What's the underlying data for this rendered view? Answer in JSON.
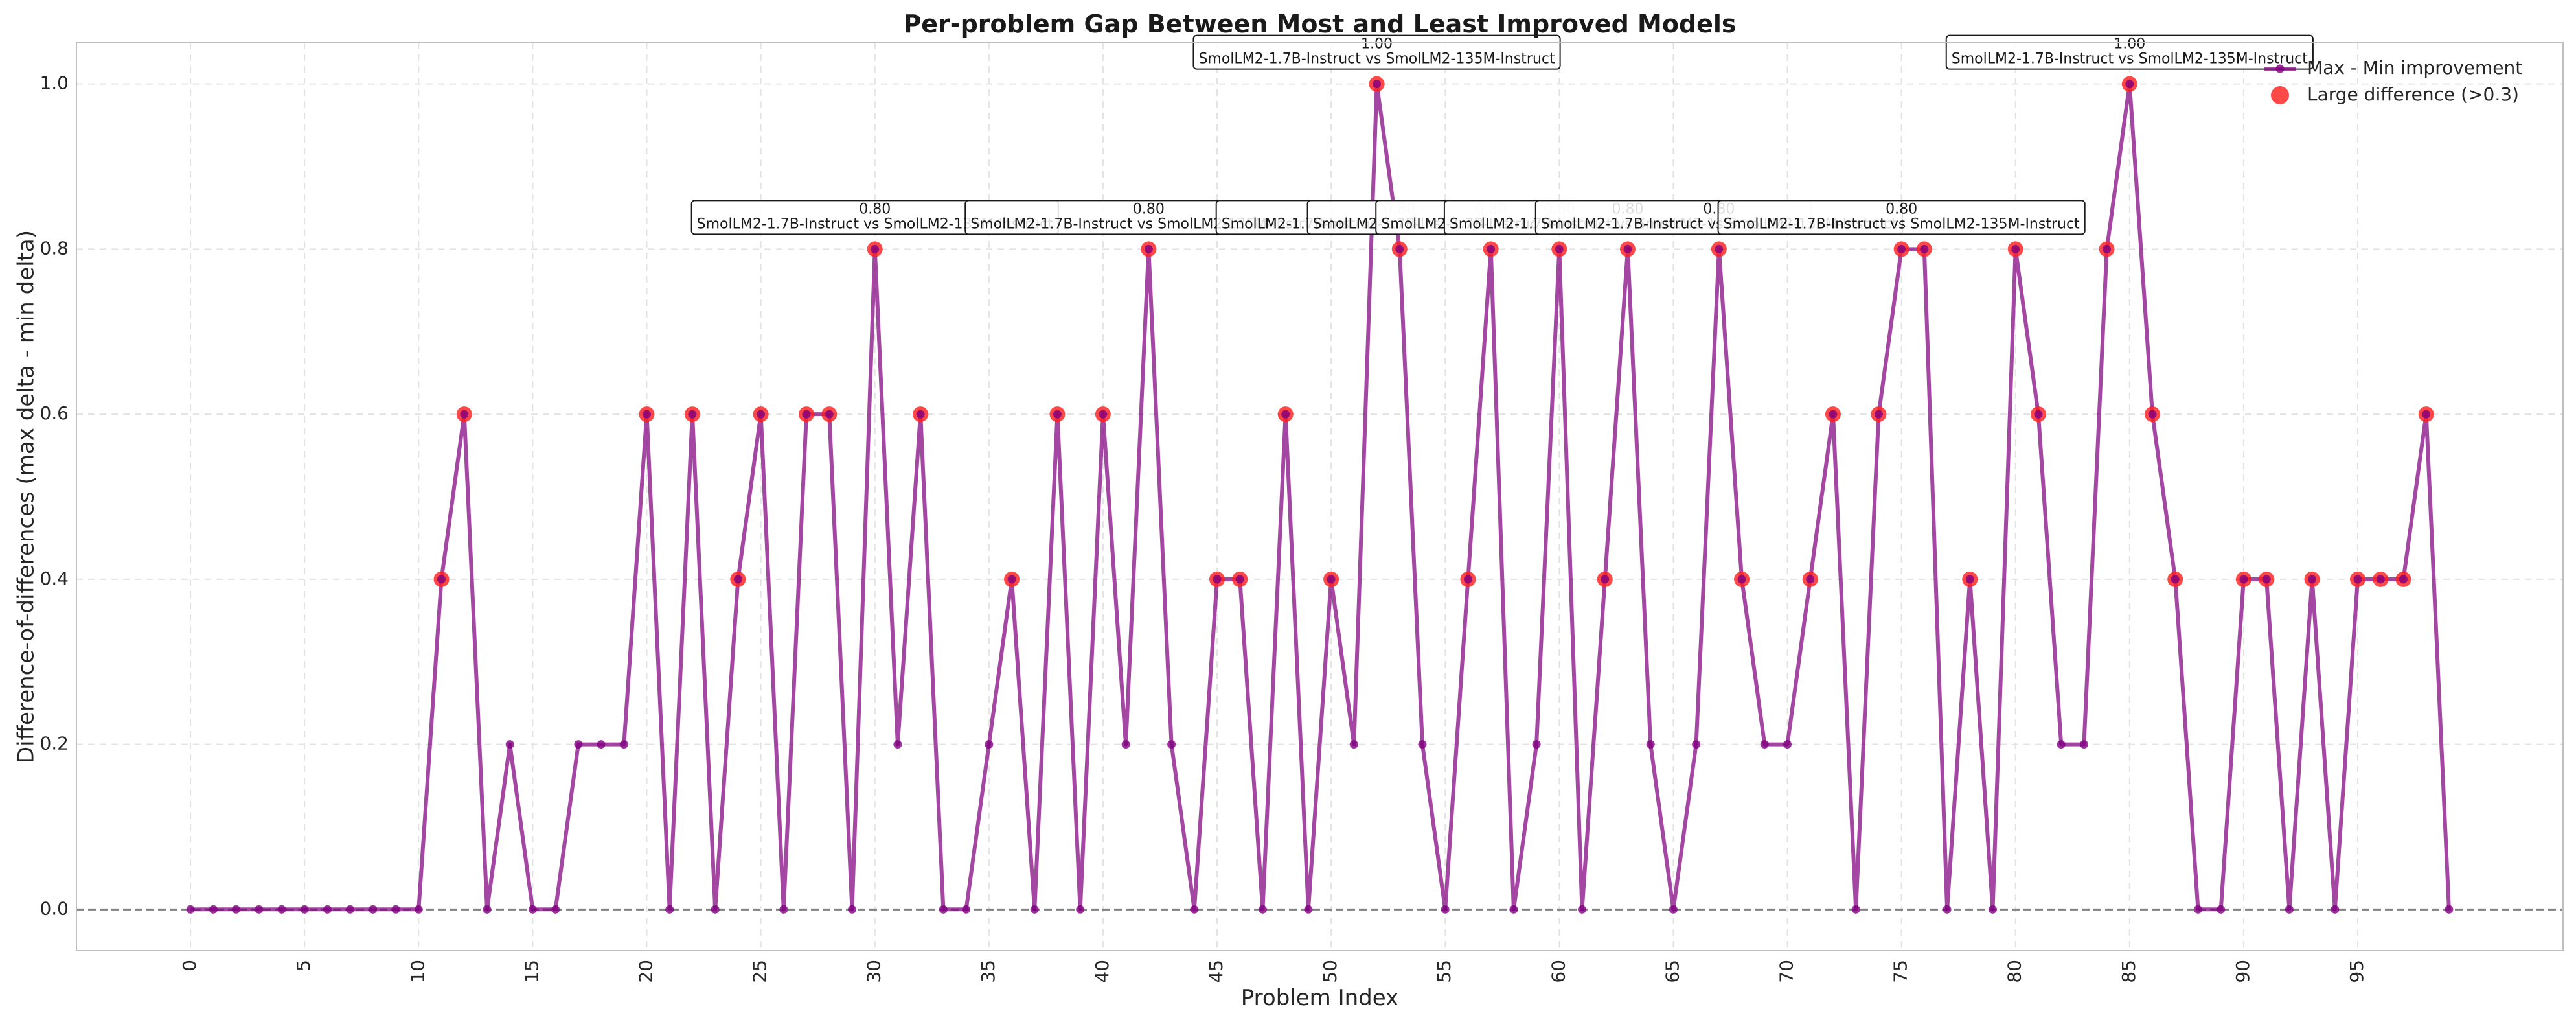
{
  "chart_data": {
    "type": "line",
    "title": "Per-problem Gap Between Most and Least Improved Models",
    "xlabel": "Problem Index",
    "ylabel": "Difference-of-differences (max delta - min delta)",
    "xlim": [
      -5,
      104
    ],
    "ylim": [
      -0.05,
      1.05
    ],
    "x_ticks": [
      0,
      5,
      10,
      15,
      20,
      25,
      30,
      35,
      40,
      45,
      50,
      55,
      60,
      65,
      70,
      75,
      80,
      85,
      90,
      95
    ],
    "y_ticks": [
      0.0,
      0.2,
      0.4,
      0.6,
      0.8,
      1.0
    ],
    "y_tick_labels": [
      "0.0",
      "0.2",
      "0.4",
      "0.6",
      "0.8",
      "1.0"
    ],
    "grid": true,
    "legend_position": "top-right",
    "series": [
      {
        "name": "Max - Min improvement",
        "color": "#800080",
        "x": [
          0,
          1,
          2,
          3,
          4,
          5,
          6,
          7,
          8,
          9,
          10,
          11,
          12,
          13,
          14,
          15,
          16,
          17,
          18,
          19,
          20,
          21,
          22,
          23,
          24,
          25,
          26,
          27,
          28,
          29,
          30,
          31,
          32,
          33,
          34,
          35,
          36,
          37,
          38,
          39,
          40,
          41,
          42,
          43,
          44,
          45,
          46,
          47,
          48,
          49,
          50,
          51,
          52,
          53,
          54,
          55,
          56,
          57,
          58,
          59,
          60,
          61,
          62,
          63,
          64,
          65,
          66,
          67,
          68,
          69,
          70,
          71,
          72,
          73,
          74,
          75,
          76,
          77,
          78,
          79,
          80,
          81,
          82,
          83,
          84,
          85,
          86,
          87,
          88,
          89,
          90,
          91,
          92,
          93,
          94,
          95,
          96,
          97,
          98,
          99
        ],
        "values": [
          0,
          0,
          0,
          0,
          0,
          0,
          0,
          0,
          0,
          0,
          0,
          0.4,
          0.6,
          0,
          0.2,
          0,
          0,
          0.2,
          0.2,
          0.2,
          0.6,
          0,
          0.6,
          0,
          0.4,
          0.6,
          0,
          0.6,
          0.6,
          0,
          0.8,
          0.2,
          0.6,
          0,
          0,
          0.2,
          0.4,
          0,
          0.6,
          0,
          0.6,
          0.2,
          0.8,
          0.2,
          0,
          0.4,
          0.4,
          0,
          0.6,
          0,
          0.4,
          0.2,
          1.0,
          0.8,
          0.2,
          0,
          0.4,
          0.8,
          0,
          0.2,
          0.8,
          0,
          0.4,
          0.8,
          0.2,
          0,
          0.2,
          0.8,
          0.4,
          0.2,
          0.2,
          0.4,
          0.6,
          0,
          0.6,
          0.8,
          0.8,
          0,
          0.4,
          0,
          0.8,
          0.6,
          0.2,
          0.2,
          0.8,
          1.0,
          0.6,
          0.4,
          0,
          0,
          0.4,
          0.4,
          0,
          0.4,
          0,
          0.4,
          0.4,
          0.4,
          0.6,
          0
        ]
      },
      {
        "name": "Large difference (>0.3)",
        "color": "#ff2020",
        "threshold": 0.3
      }
    ],
    "reference_line": {
      "y": 0,
      "style": "dashed",
      "color": "#808080"
    },
    "annotations": [
      {
        "x": 30,
        "value": "0.80",
        "text": "SmolLM2-1.7B-Instruct vs SmolLM2-135M-Instruct"
      },
      {
        "x": 42,
        "value": "0.80",
        "text": "SmolLM2-1.7B-Instruct vs SmolLM2-135M-Instruct"
      },
      {
        "x": 52,
        "value": "1.00",
        "text": "SmolLM2-1.7B-Instruct vs SmolLM2-135M-Instruct"
      },
      {
        "x": 53,
        "value": "0.80",
        "text": "SmolLM2-1.7B-Instruct vs SmolLM2-135M-Instruct"
      },
      {
        "x": 57,
        "value": "0.80",
        "text": "SmolLM2-1.7B-Instruct vs SmolLM2-135M-Instruct"
      },
      {
        "x": 60,
        "value": "0.80",
        "text": "SmolLM2-1.7B-Instruct vs SmolLM2-135M-Instruct"
      },
      {
        "x": 63,
        "value": "0.80",
        "text": "SmolLM2-1.7B-Instruct vs SmolLM2-135M-Instruct"
      },
      {
        "x": 67,
        "value": "0.80",
        "text": "SmolLM2-1.7B-Instruct vs SmolLM2-135M-Instruct"
      },
      {
        "x": 75,
        "value": "0.80",
        "text": "SmolLM2-1.7B-Instruct vs SmolLM2-135M-Instruct"
      },
      {
        "x": 85,
        "value": "1.00",
        "text": "SmolLM2-1.7B-Instruct vs SmolLM2-135M-Instruct"
      }
    ]
  }
}
